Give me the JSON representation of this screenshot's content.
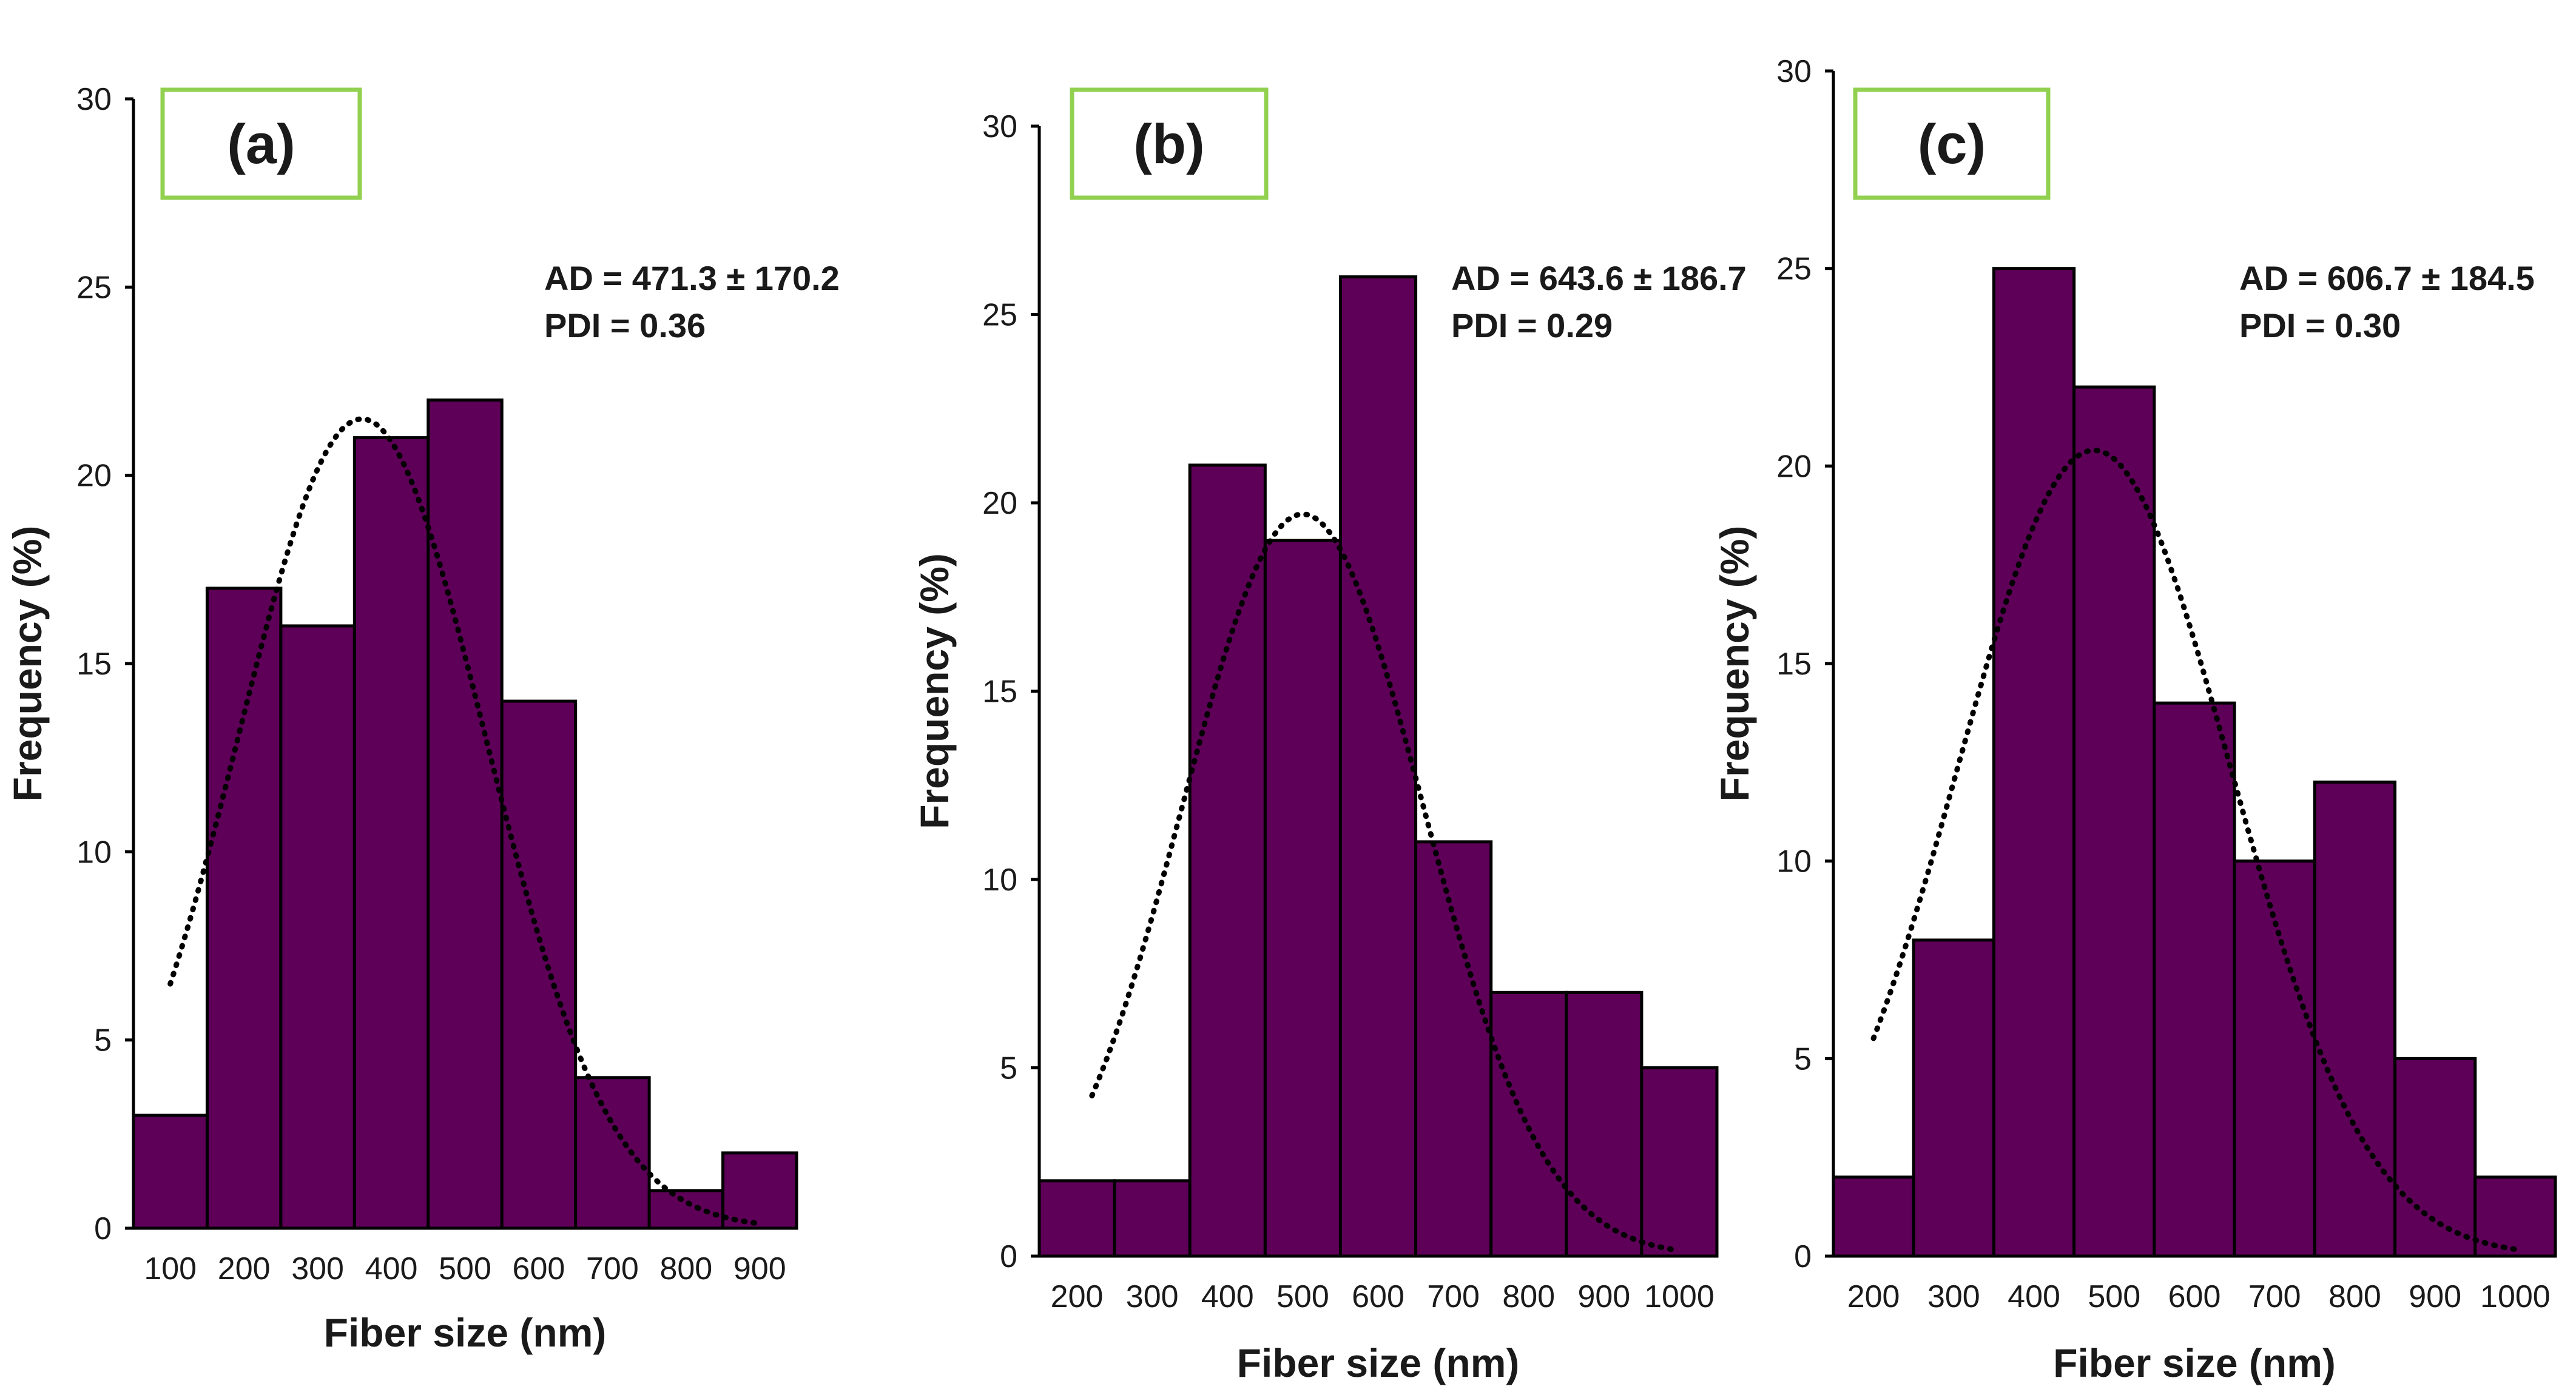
{
  "colors": {
    "bar_fill": "#5e0058",
    "bar_edge": "#000000",
    "label_box_border": "#92d050"
  },
  "chart_data": [
    {
      "type": "bar",
      "panel_label": "(a)",
      "title": "",
      "xlabel": "Fiber size (nm)",
      "ylabel": "Frequency (%)",
      "categories": [
        "100",
        "200",
        "300",
        "400",
        "500",
        "600",
        "700",
        "800",
        "900"
      ],
      "values": [
        3,
        17,
        16,
        21,
        22,
        14,
        4,
        1,
        2
      ],
      "ylim": [
        0,
        30
      ],
      "yticks": [
        0,
        5,
        10,
        15,
        20,
        25,
        30
      ],
      "annotation_lines": [
        "AD = 471.3 ± 170.2",
        "PDI = 0.36"
      ],
      "fit_curve": {
        "type": "normal",
        "mean": 360,
        "peak": 21.5,
        "sd": 168,
        "x_range": [
          100,
          900
        ],
        "style": "dotted"
      },
      "grid": false
    },
    {
      "type": "bar",
      "panel_label": "(b)",
      "title": "",
      "xlabel": "Fiber size (nm)",
      "ylabel": "Frequency (%)",
      "categories": [
        "200",
        "300",
        "400",
        "500",
        "600",
        "700",
        "800",
        "900",
        "1000"
      ],
      "values": [
        2,
        2,
        21,
        19,
        26,
        11,
        7,
        7,
        5
      ],
      "ylim": [
        0,
        30
      ],
      "yticks": [
        0,
        5,
        10,
        15,
        20,
        25,
        30
      ],
      "annotation_lines": [
        "AD = 643.6 ± 186.7",
        "PDI = 0.29"
      ],
      "fit_curve": {
        "type": "normal",
        "mean": 500,
        "peak": 19.7,
        "sd": 160,
        "x_range": [
          220,
          1000
        ],
        "style": "dotted"
      },
      "grid": false
    },
    {
      "type": "bar",
      "panel_label": "(c)",
      "title": "",
      "xlabel": "Fiber size  (nm)",
      "ylabel": "Frequency (%)",
      "categories": [
        "200",
        "300",
        "400",
        "500",
        "600",
        "700",
        "800",
        "900",
        "1000"
      ],
      "values": [
        2,
        8,
        25,
        22,
        14,
        10,
        12,
        5,
        2
      ],
      "ylim": [
        0,
        30
      ],
      "yticks": [
        0,
        5,
        10,
        15,
        20,
        25,
        30
      ],
      "annotation_lines": [
        "AD = 606.7 ± 184.5",
        "PDI = 0.30"
      ],
      "fit_curve": {
        "type": "normal",
        "mean": 475,
        "peak": 20.4,
        "sd": 170,
        "x_range": [
          200,
          1000
        ],
        "style": "dotted"
      },
      "grid": false
    }
  ]
}
